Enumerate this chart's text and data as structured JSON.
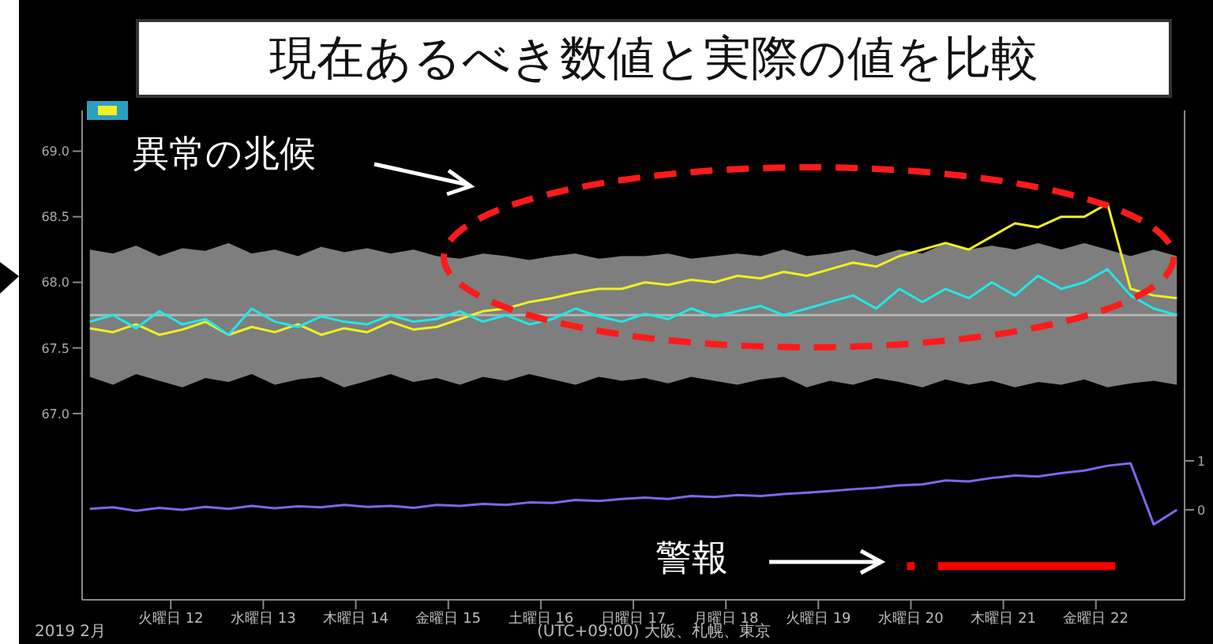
{
  "chart_data": {
    "type": "line",
    "title": "現在あるべき数値と実際の値を比較",
    "annotations": [
      "異常の兆候",
      "警報",
      "2019 2月",
      "(UTC+09:00) 大阪、札幌、東京"
    ],
    "x": [
      "2019-02-11T03:00",
      "2019-02-11T09:00",
      "2019-02-11T15:00",
      "2019-02-11T21:00",
      "2019-02-12T03:00",
      "2019-02-12T09:00",
      "2019-02-12T15:00",
      "2019-02-12T21:00",
      "2019-02-13T03:00",
      "2019-02-13T09:00",
      "2019-02-13T15:00",
      "2019-02-13T21:00",
      "2019-02-14T03:00",
      "2019-02-14T09:00",
      "2019-02-14T15:00",
      "2019-02-14T21:00",
      "2019-02-15T03:00",
      "2019-02-15T09:00",
      "2019-02-15T15:00",
      "2019-02-15T21:00",
      "2019-02-16T03:00",
      "2019-02-16T09:00",
      "2019-02-16T15:00",
      "2019-02-16T21:00",
      "2019-02-17T03:00",
      "2019-02-17T09:00",
      "2019-02-17T15:00",
      "2019-02-17T21:00",
      "2019-02-18T03:00",
      "2019-02-18T09:00",
      "2019-02-18T15:00",
      "2019-02-18T21:00",
      "2019-02-19T03:00",
      "2019-02-19T09:00",
      "2019-02-19T15:00",
      "2019-02-19T21:00",
      "2019-02-20T03:00",
      "2019-02-20T09:00",
      "2019-02-20T15:00",
      "2019-02-20T21:00",
      "2019-02-21T03:00",
      "2019-02-21T09:00",
      "2019-02-21T15:00",
      "2019-02-21T21:00",
      "2019-02-22T03:00",
      "2019-02-22T09:00",
      "2019-02-22T15:00",
      "2019-02-22T21:00"
    ],
    "series": [
      {
        "color": "#b4b4b4",
        "values": [
          67.75,
          67.75,
          67.75,
          67.75,
          67.75,
          67.75,
          67.75,
          67.75,
          67.75,
          67.75,
          67.75,
          67.75,
          67.75,
          67.75,
          67.75,
          67.75,
          67.75,
          67.75,
          67.75,
          67.75,
          67.75,
          67.75,
          67.75,
          67.75,
          67.75,
          67.75,
          67.75,
          67.75,
          67.75,
          67.75,
          67.75,
          67.75,
          67.75,
          67.75,
          67.75,
          67.75,
          67.75,
          67.75,
          67.75,
          67.75,
          67.75,
          67.75,
          67.75,
          67.75,
          67.75,
          67.75,
          67.75,
          67.75
        ],
        "lower": [
          67.28,
          67.22,
          67.3,
          67.25,
          67.2,
          67.27,
          67.24,
          67.3,
          67.22,
          67.26,
          67.28,
          67.2,
          67.25,
          67.3,
          67.24,
          67.27,
          67.22,
          67.28,
          67.25,
          67.3,
          67.26,
          67.22,
          67.28,
          67.25,
          67.27,
          67.23,
          67.28,
          67.25,
          67.22,
          67.26,
          67.28,
          67.2,
          67.25,
          67.22,
          67.27,
          67.24,
          67.2,
          67.26,
          67.22,
          67.25,
          67.2,
          67.24,
          67.22,
          67.26,
          67.2,
          67.23,
          67.25,
          67.22
        ],
        "upper": [
          68.25,
          68.22,
          68.28,
          68.2,
          68.26,
          68.24,
          68.3,
          68.22,
          68.25,
          68.2,
          68.27,
          68.23,
          68.26,
          68.22,
          68.25,
          68.2,
          68.18,
          68.22,
          68.2,
          68.17,
          68.2,
          68.22,
          68.18,
          68.2,
          68.2,
          68.22,
          68.18,
          68.2,
          68.22,
          68.2,
          68.25,
          68.2,
          68.22,
          68.25,
          68.2,
          68.25,
          68.22,
          68.3,
          68.25,
          68.28,
          68.25,
          68.3,
          68.25,
          68.3,
          68.25,
          68.2,
          68.25,
          68.2
        ]
      },
      {
        "color": "#f0f020",
        "values": [
          67.65,
          67.62,
          67.68,
          67.6,
          67.64,
          67.7,
          67.6,
          67.66,
          67.62,
          67.68,
          67.6,
          67.65,
          67.62,
          67.7,
          67.64,
          67.66,
          67.72,
          67.78,
          67.8,
          67.85,
          67.88,
          67.92,
          67.95,
          67.95,
          68.0,
          67.98,
          68.02,
          68.0,
          68.05,
          68.03,
          68.08,
          68.05,
          68.1,
          68.15,
          68.12,
          68.2,
          68.25,
          68.3,
          68.25,
          68.35,
          68.45,
          68.42,
          68.5,
          68.5,
          68.6,
          67.95,
          67.9,
          67.88
        ]
      },
      {
        "color": "#20e8e8",
        "values": [
          67.7,
          67.75,
          67.65,
          67.78,
          67.68,
          67.72,
          67.6,
          67.8,
          67.7,
          67.66,
          67.74,
          67.7,
          67.68,
          67.75,
          67.7,
          67.72,
          67.78,
          67.7,
          67.75,
          67.68,
          67.72,
          67.8,
          67.74,
          67.7,
          67.76,
          67.72,
          67.8,
          67.74,
          67.78,
          67.82,
          67.75,
          67.8,
          67.85,
          67.9,
          67.8,
          67.95,
          67.85,
          67.95,
          67.88,
          68.0,
          67.9,
          68.05,
          67.95,
          68.0,
          68.1,
          67.9,
          67.8,
          67.75
        ]
      },
      {
        "color": "#7b68ee",
        "axis": "y2",
        "values": [
          0.02,
          0.05,
          -0.02,
          0.04,
          0.0,
          0.06,
          0.02,
          0.08,
          0.03,
          0.07,
          0.05,
          0.1,
          0.06,
          0.08,
          0.04,
          0.1,
          0.08,
          0.12,
          0.1,
          0.15,
          0.14,
          0.2,
          0.18,
          0.22,
          0.25,
          0.22,
          0.28,
          0.26,
          0.3,
          0.28,
          0.32,
          0.35,
          0.38,
          0.42,
          0.45,
          0.5,
          0.52,
          0.6,
          0.58,
          0.65,
          0.7,
          0.68,
          0.75,
          0.8,
          0.9,
          0.95,
          -0.3,
          0.0
        ]
      },
      {
        "color": "#ff0000",
        "axis": "y2",
        "x": [
          "2019-02-19T23:00",
          "2019-02-20T01:00",
          "2019-02-20T04:00",
          "2019-02-20T07:00",
          "2019-02-21T00:00",
          "2019-02-22T05:00"
        ],
        "values": [
          -1.15,
          -1.15,
          null,
          -1.15,
          -1.15,
          -1.15
        ]
      }
    ],
    "xlim": [
      "2019-02-11T01:00",
      "2019-02-22T23:00"
    ],
    "xticks": [
      {
        "value": "2019-02-12",
        "label": "火曜日 12"
      },
      {
        "value": "2019-02-13",
        "label": "水曜日 13"
      },
      {
        "value": "2019-02-14",
        "label": "木曜日 14"
      },
      {
        "value": "2019-02-15",
        "label": "金曜日 15"
      },
      {
        "value": "2019-02-16",
        "label": "土曜日 16"
      },
      {
        "value": "2019-02-17",
        "label": "日曜日 17"
      },
      {
        "value": "2019-02-18",
        "label": "月曜日 18"
      },
      {
        "value": "2019-02-19",
        "label": "火曜日 19"
      },
      {
        "value": "2019-02-20",
        "label": "水曜日 20"
      },
      {
        "value": "2019-02-21",
        "label": "木曜日 21"
      },
      {
        "value": "2019-02-22",
        "label": "金曜日 22"
      }
    ],
    "ylim": [
      65.58,
      69.31
    ],
    "yticks": [
      {
        "value": 67,
        "label": "67.0"
      },
      {
        "value": 67.5,
        "label": "67.5"
      },
      {
        "value": 68,
        "label": "68.0"
      },
      {
        "value": 68.5,
        "label": "68.5"
      },
      {
        "value": 69,
        "label": "69.0"
      }
    ],
    "y2lim": [
      -1.84,
      8.16
    ],
    "y2ticks": [
      0,
      1
    ],
    "grid": false,
    "legend": false,
    "marker": "none",
    "line_style": "solid"
  }
}
